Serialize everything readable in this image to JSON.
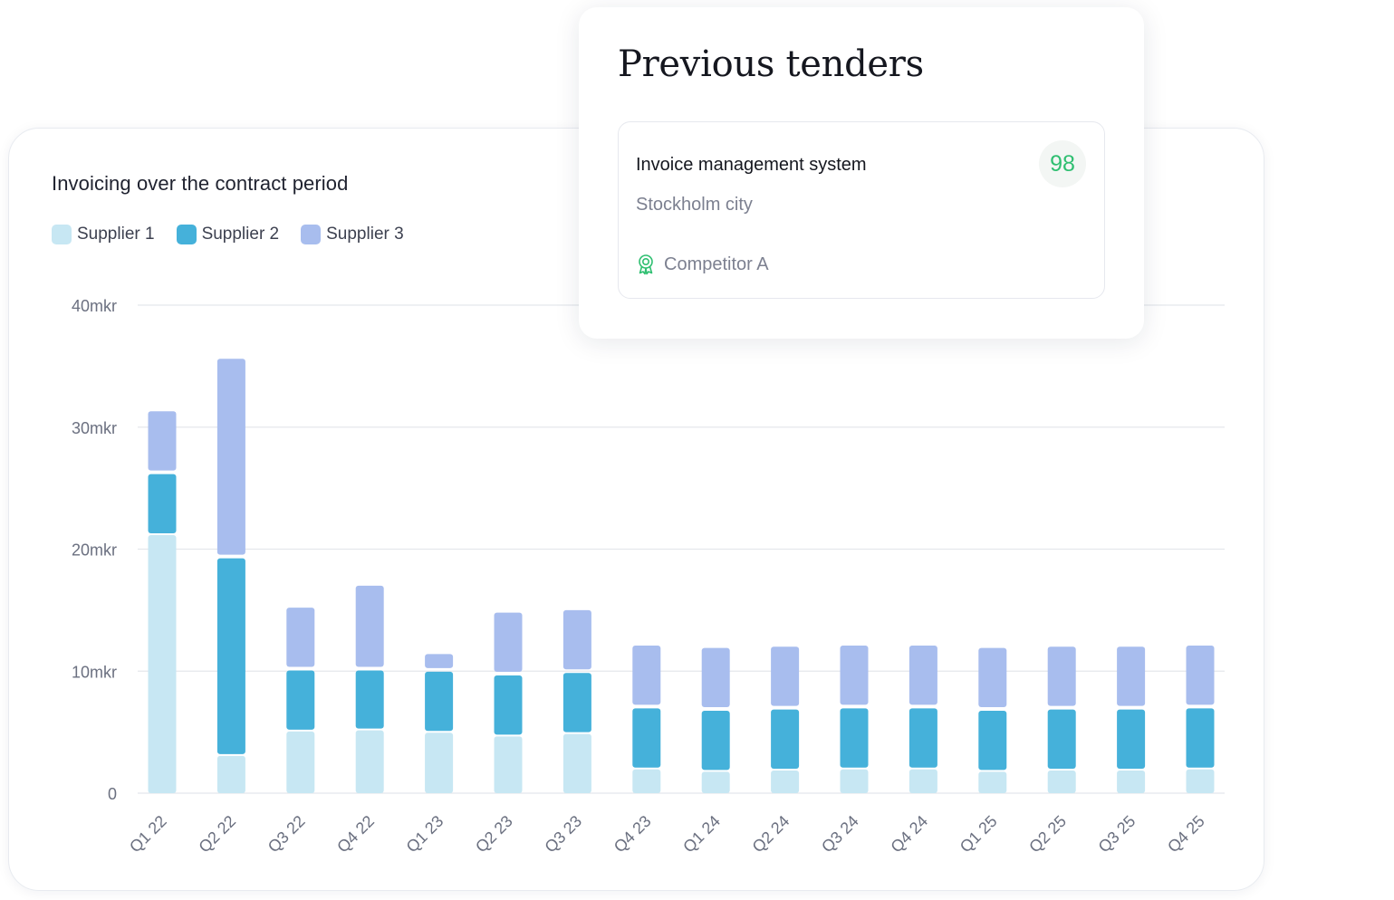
{
  "colors": {
    "supplier_1": "#c7e7f3",
    "supplier_2": "#45b1da",
    "supplier_3": "#a8bdee",
    "grid": "#e4e7ec",
    "axis_text": "#6b7080",
    "score": "#2fbf71"
  },
  "tender_card": {
    "heading": "Previous tenders",
    "item": {
      "name": "Invoice management system",
      "organization": "Stockholm city",
      "winner_icon": "award-ribbon-icon",
      "winner": "Competitor A",
      "score": "98"
    }
  },
  "chart_data": {
    "type": "bar",
    "stacked": true,
    "title": "Invoicing over the contract period",
    "xlabel": "",
    "ylabel": "",
    "ylim": [
      0,
      40
    ],
    "y_ticks": [
      0,
      10,
      20,
      30,
      40
    ],
    "y_tick_labels": [
      "0",
      "10mkr",
      "20mkr",
      "30mkr",
      "40mkr"
    ],
    "grid": true,
    "legend_position": "top-left",
    "categories": [
      "Q1 22",
      "Q2 22",
      "Q3 22",
      "Q4 22",
      "Q1 23",
      "Q2 23",
      "Q3 23",
      "Q4 23",
      "Q1 24",
      "Q2 24",
      "Q3 24",
      "Q4 24",
      "Q1 25",
      "Q2 25",
      "Q3 25",
      "Q4 25"
    ],
    "series": [
      {
        "name": "Supplier 1",
        "values": [
          21.3,
          3.2,
          5.2,
          5.3,
          5.1,
          4.8,
          5.0,
          2.1,
          1.9,
          2.0,
          2.1,
          2.1,
          1.9,
          2.0,
          2.0,
          2.1
        ]
      },
      {
        "name": "Supplier 2",
        "values": [
          5.0,
          16.2,
          5.0,
          4.9,
          5.0,
          5.0,
          5.0,
          5.0,
          5.0,
          5.0,
          5.0,
          5.0,
          5.0,
          5.0,
          5.0,
          5.0
        ]
      },
      {
        "name": "Supplier 3",
        "values": [
          5.0,
          16.2,
          5.0,
          6.8,
          1.3,
          5.0,
          5.0,
          5.0,
          5.0,
          5.0,
          5.0,
          5.0,
          5.0,
          5.0,
          5.0,
          5.0
        ]
      }
    ]
  }
}
